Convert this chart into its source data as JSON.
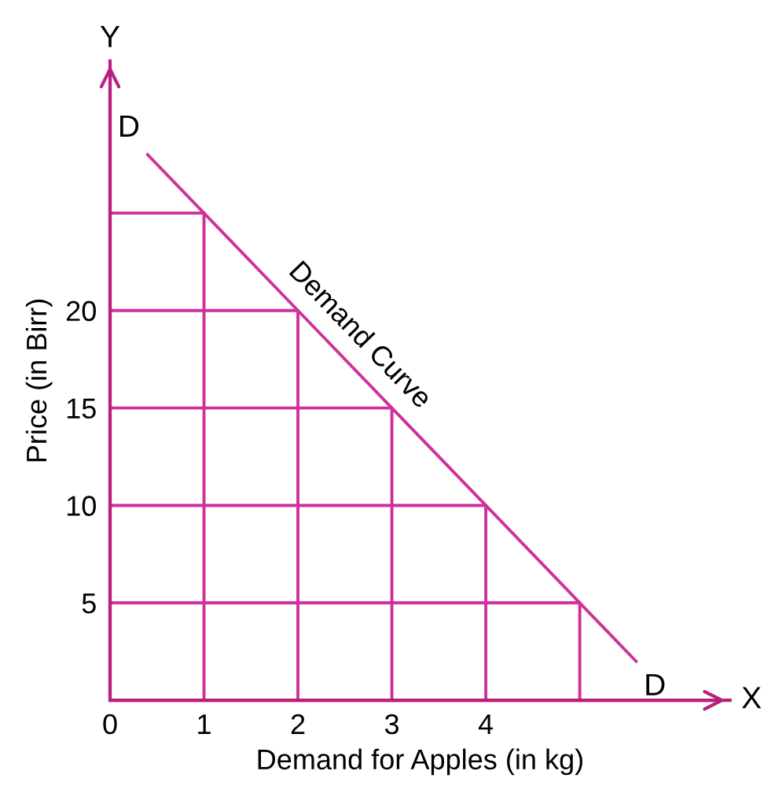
{
  "chart_data": {
    "type": "line",
    "xlabel": "Demand for Apples (in kg)",
    "ylabel": "Price (in Birr)",
    "xlim": [
      0,
      6.6
    ],
    "ylim": [
      0,
      32.8
    ],
    "xticks": [
      0,
      1,
      2,
      3,
      4
    ],
    "yticks": [
      5,
      10,
      15,
      20
    ],
    "grid": false,
    "legend": false,
    "marker": "none",
    "line_style": "solid",
    "series": [
      {
        "name": "Demand Curve",
        "color": "#d0309a",
        "x": [
          0.4,
          1,
          2,
          3,
          4,
          5,
          5.6
        ],
        "values": [
          28,
          25,
          20,
          15,
          10,
          5,
          2
        ]
      },
      {
        "color": "#d0309a",
        "x": [
          0,
          1,
          1
        ],
        "values": [
          25,
          25,
          0
        ]
      },
      {
        "color": "#d0309a",
        "x": [
          0,
          2,
          2
        ],
        "values": [
          20,
          20,
          0
        ]
      },
      {
        "color": "#d0309a",
        "x": [
          0,
          3,
          3
        ],
        "values": [
          15,
          15,
          0
        ]
      },
      {
        "color": "#d0309a",
        "x": [
          0,
          4,
          4
        ],
        "values": [
          10,
          10,
          0
        ]
      },
      {
        "color": "#d0309a",
        "x": [
          0,
          5,
          5
        ],
        "values": [
          5,
          5,
          0
        ]
      }
    ],
    "annotations": [
      {
        "text": "D",
        "x": 0.4,
        "y": 28
      },
      {
        "text": "D",
        "x": 5.6,
        "y": 2
      },
      "X",
      "Y"
    ]
  }
}
